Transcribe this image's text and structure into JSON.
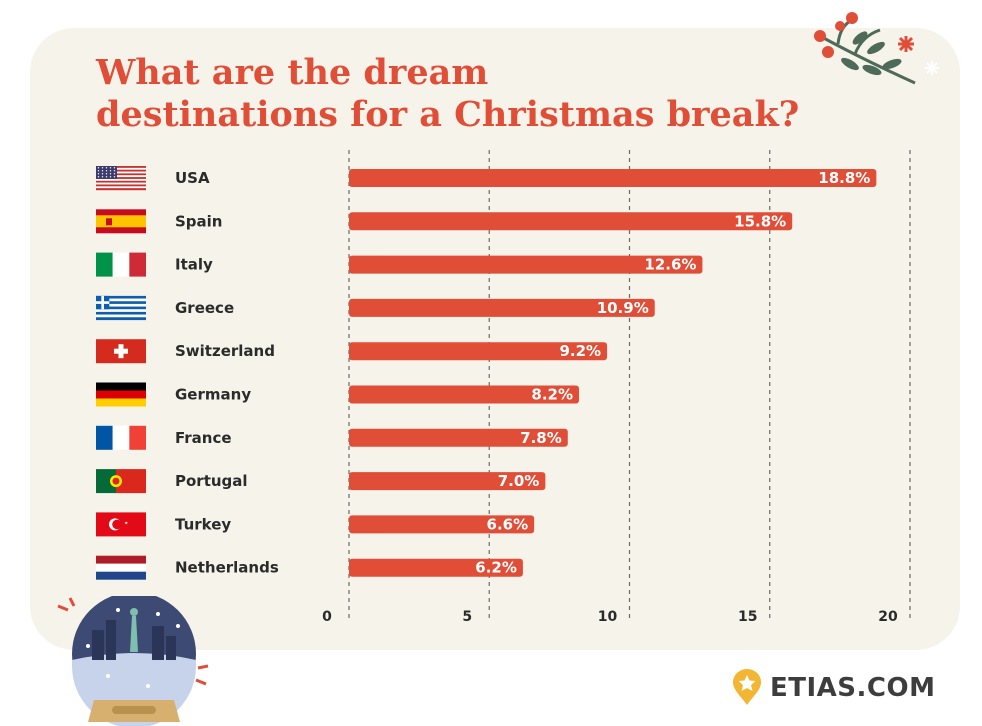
{
  "title": {
    "line1": "What are the dream",
    "line2": "destinations for a Christmas break?"
  },
  "chart_data": {
    "type": "bar",
    "orientation": "horizontal",
    "categories": [
      "USA",
      "Spain",
      "Italy",
      "Greece",
      "Switzerland",
      "Germany",
      "France",
      "Portugal",
      "Turkey",
      "Netherlands"
    ],
    "values": [
      18.8,
      15.8,
      12.6,
      10.9,
      9.2,
      8.2,
      7.8,
      7.0,
      6.6,
      6.2
    ],
    "value_labels": [
      "18.8%",
      "15.8%",
      "12.6%",
      "10.9%",
      "9.2%",
      "8.2%",
      "7.8%",
      "7.0%",
      "6.6%",
      "6.2%"
    ],
    "x_ticks": [
      0,
      5,
      10,
      15,
      20
    ],
    "xlim": [
      0,
      20
    ],
    "grid": true,
    "bar_color": "#e04e38",
    "flag_icons": [
      "usa-flag",
      "spain-flag",
      "italy-flag",
      "greece-flag",
      "switzerland-flag",
      "germany-flag",
      "france-flag",
      "portugal-flag",
      "turkey-flag",
      "netherlands-flag"
    ]
  },
  "logo": {
    "text": "ETIAS.COM",
    "icon": "star-pin-icon"
  },
  "colors": {
    "accent": "#e04e38",
    "background": "#f6f3ea",
    "text": "#2b2b2b"
  }
}
